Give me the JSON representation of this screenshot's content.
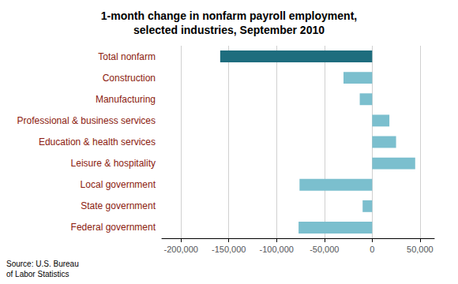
{
  "chart_data": {
    "type": "bar",
    "orientation": "horizontal",
    "title": "1-month change in nonfarm payroll employment,\nselected industries, September 2010",
    "categories": [
      "Federal government",
      "State government",
      "Local government",
      "Leisure & hospitality",
      "Education & health services",
      "Professional & business services",
      "Manufacturing",
      "Construction",
      "Total nonfarm"
    ],
    "values": [
      -77000,
      -10000,
      -76000,
      45000,
      25000,
      18000,
      -13000,
      -30000,
      -159000
    ],
    "colors": [
      "#7bbfce",
      "#7bbfce",
      "#7bbfce",
      "#7bbfce",
      "#7bbfce",
      "#7bbfce",
      "#7bbfce",
      "#7bbfce",
      "#1e6d7e"
    ],
    "xlim": [
      -220000,
      65000
    ],
    "xticks": [
      {
        "value": -200000,
        "label": "-200,000"
      },
      {
        "value": -150000,
        "label": "-150,000"
      },
      {
        "value": -100000,
        "label": "-100,000"
      },
      {
        "value": -50000,
        "label": "-50,000"
      },
      0,
      {
        "value": 50000,
        "label": "50,000"
      }
    ],
    "grid": true,
    "annotations": [
      "Source: U.S. Bureau\nof Labor Statistics"
    ]
  }
}
